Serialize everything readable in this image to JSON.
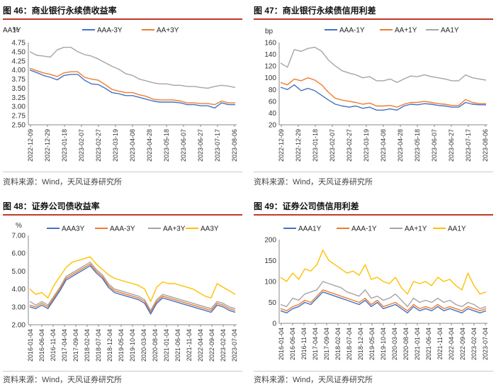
{
  "source_text": "资料来源：Wind，天风证券研究所",
  "colors": {
    "blue": "#4472C4",
    "orange": "#ED7D31",
    "gray": "#A5A5A5",
    "yellow": "#FFC000",
    "title_rule": "#c0392b"
  },
  "chart_data": [
    {
      "id": "c46",
      "title": "图 46：商业银行永续债收益率",
      "type": "line",
      "ylabel": "%",
      "ylim": [
        2.5,
        4.75
      ],
      "yticks": [
        "4.75",
        "4.50",
        "4.25",
        "4.00",
        "3.75",
        "3.50",
        "3.25",
        "3.00",
        "2.75",
        "2.50"
      ],
      "x_tick_labels": [
        "2022-12-09",
        "2022-12-29",
        "2023-01-18",
        "2023-02-07",
        "2023-02-27",
        "2023-03-19",
        "2023-04-08",
        "2023-04-28",
        "2023-05-18",
        "2023-06-07",
        "2023-06-27",
        "2023-07-17",
        "2023-08-06"
      ],
      "series": [
        {
          "name": "AAA-3Y",
          "color": "#4472C4",
          "values": [
            4.0,
            3.93,
            3.85,
            3.8,
            3.73,
            3.85,
            3.88,
            3.88,
            3.72,
            3.62,
            3.6,
            3.5,
            3.38,
            3.35,
            3.3,
            3.3,
            3.25,
            3.2,
            3.15,
            3.12,
            3.12,
            3.12,
            3.1,
            3.05,
            3.05,
            3.02,
            3.02,
            2.96,
            3.1,
            3.05,
            3.05
          ]
        },
        {
          "name": "AA+3Y",
          "color": "#ED7D31",
          "values": [
            4.05,
            3.98,
            3.92,
            3.88,
            3.82,
            3.92,
            3.95,
            3.95,
            3.8,
            3.75,
            3.72,
            3.6,
            3.47,
            3.42,
            3.38,
            3.38,
            3.32,
            3.28,
            3.2,
            3.18,
            3.18,
            3.18,
            3.15,
            3.1,
            3.1,
            3.08,
            3.08,
            3.05,
            3.15,
            3.1,
            3.1
          ]
        },
        {
          "name": "AA1Y",
          "color": "#A5A5A5",
          "values": [
            4.5,
            4.4,
            4.38,
            4.35,
            4.55,
            4.62,
            4.62,
            4.5,
            4.42,
            4.38,
            4.3,
            4.2,
            4.1,
            4.02,
            3.9,
            3.85,
            3.75,
            3.7,
            3.65,
            3.62,
            3.62,
            3.58,
            3.58,
            3.55,
            3.55,
            3.52,
            3.5,
            3.55,
            3.58,
            3.56,
            3.52
          ]
        }
      ]
    },
    {
      "id": "c47",
      "title": "图 47：商业银行永续债信用利差",
      "type": "line",
      "ylabel": "bp",
      "ylim": [
        20,
        160
      ],
      "yticks": [
        "160",
        "140",
        "120",
        "100",
        "80",
        "60",
        "40",
        "20"
      ],
      "x_tick_labels": [
        "2022-12-09",
        "2022-12-29",
        "2023-01-18",
        "2023-02-07",
        "2023-02-27",
        "2023-03-19",
        "2023-04-08",
        "2023-04-28",
        "2023-05-18",
        "2023-06-07",
        "2023-06-27",
        "2023-07-17",
        "2023-08-06"
      ],
      "series": [
        {
          "name": "AAA-1Y",
          "color": "#4472C4",
          "values": [
            84,
            80,
            88,
            78,
            82,
            78,
            70,
            62,
            55,
            52,
            50,
            52,
            48,
            50,
            45,
            45,
            47,
            45,
            52,
            55,
            54,
            56,
            55,
            53,
            52,
            50,
            50,
            58,
            55,
            54,
            54
          ]
        },
        {
          "name": "AA+1Y",
          "color": "#ED7D31",
          "values": [
            92,
            88,
            98,
            95,
            100,
            96,
            88,
            75,
            65,
            62,
            60,
            58,
            55,
            57,
            52,
            52,
            53,
            50,
            55,
            58,
            58,
            60,
            58,
            56,
            55,
            53,
            53,
            63,
            58,
            56,
            56
          ]
        },
        {
          "name": "AA1Y",
          "color": "#A5A5A5",
          "values": [
            125,
            118,
            148,
            145,
            150,
            152,
            145,
            130,
            120,
            112,
            108,
            105,
            100,
            102,
            95,
            95,
            98,
            92,
            98,
            103,
            102,
            105,
            102,
            100,
            98,
            95,
            95,
            105,
            100,
            98,
            96
          ]
        }
      ]
    },
    {
      "id": "c48",
      "title": "图 48：证券公司债收益率",
      "type": "line",
      "ylabel": "%",
      "ylim": [
        2.0,
        7.0
      ],
      "yticks": [
        "7.00",
        "6.00",
        "5.00",
        "4.00",
        "3.00",
        "2.00"
      ],
      "x_tick_labels": [
        "2016-01-04",
        "2016-06-04",
        "2016-11-04",
        "2017-04-04",
        "2017-09-04",
        "2018-02-04",
        "2018-07-04",
        "2018-12-04",
        "2019-05-04",
        "2019-10-04",
        "2020-03-04",
        "2020-08-04",
        "2021-01-04",
        "2021-06-04",
        "2021-11-04",
        "2022-04-04",
        "2022-09-04",
        "2023-02-04",
        "2023-07-04"
      ],
      "series": [
        {
          "name": "AAA3Y",
          "color": "#4472C4",
          "values": [
            3.0,
            2.9,
            3.1,
            2.9,
            3.4,
            3.9,
            4.5,
            4.7,
            4.9,
            5.1,
            5.3,
            4.9,
            4.6,
            4.1,
            3.8,
            3.7,
            3.6,
            3.5,
            3.4,
            3.2,
            2.6,
            3.2,
            3.5,
            3.4,
            3.3,
            3.2,
            3.1,
            3.0,
            2.9,
            2.8,
            2.7,
            3.1,
            3.0,
            2.8,
            2.7
          ]
        },
        {
          "name": "AAA-3Y",
          "color": "#ED7D31",
          "values": [
            3.1,
            3.0,
            3.2,
            3.0,
            3.5,
            4.0,
            4.6,
            4.8,
            5.0,
            5.2,
            5.4,
            5.0,
            4.7,
            4.2,
            3.9,
            3.8,
            3.7,
            3.6,
            3.5,
            3.3,
            2.7,
            3.3,
            3.6,
            3.5,
            3.4,
            3.3,
            3.2,
            3.1,
            3.0,
            2.9,
            2.8,
            3.2,
            3.1,
            2.9,
            2.8
          ]
        },
        {
          "name": "AA+3Y",
          "color": "#A5A5A5",
          "values": [
            3.3,
            3.1,
            3.3,
            3.1,
            3.6,
            4.1,
            4.7,
            4.9,
            5.1,
            5.3,
            5.5,
            5.1,
            4.8,
            4.3,
            4.0,
            3.9,
            3.8,
            3.7,
            3.6,
            3.4,
            2.8,
            3.4,
            3.7,
            3.6,
            3.5,
            3.4,
            3.3,
            3.2,
            3.1,
            3.0,
            2.9,
            3.3,
            3.2,
            3.0,
            2.9
          ]
        },
        {
          "name": "AA3Y",
          "color": "#FFC000",
          "values": [
            4.0,
            3.7,
            3.8,
            3.5,
            4.2,
            4.7,
            5.2,
            5.5,
            5.6,
            5.7,
            5.8,
            5.4,
            5.1,
            4.8,
            4.6,
            4.5,
            4.4,
            4.3,
            4.2,
            4.0,
            3.3,
            4.1,
            4.4,
            4.3,
            4.3,
            4.2,
            4.1,
            4.0,
            3.8,
            3.6,
            3.5,
            4.3,
            4.1,
            3.9,
            3.7
          ]
        }
      ]
    },
    {
      "id": "c49",
      "title": "图 49：证券公司债信用利差",
      "type": "line",
      "ylabel": "",
      "ylim": [
        0,
        200
      ],
      "yticks": [
        "200",
        "150",
        "100",
        "50",
        "0"
      ],
      "x_tick_labels": [
        "2016-01-04",
        "2016-06-04",
        "2016-11-04",
        "2017-04-04",
        "2017-09-04",
        "2018-02-04",
        "2018-07-04",
        "2018-12-04",
        "2019-05-04",
        "2019-10-04",
        "2020-03-04",
        "2020-08-04",
        "2021-01-04",
        "2021-06-04",
        "2021-11-04",
        "2022-04-04",
        "2022-09-04",
        "2023-02-04",
        "2023-07-04"
      ],
      "series": [
        {
          "name": "AAA1Y",
          "color": "#4472C4",
          "values": [
            30,
            25,
            35,
            40,
            50,
            45,
            60,
            75,
            70,
            65,
            60,
            55,
            50,
            45,
            55,
            40,
            50,
            35,
            40,
            45,
            35,
            25,
            40,
            30,
            35,
            30,
            40,
            30,
            35,
            30,
            25,
            35,
            30,
            25,
            30
          ]
        },
        {
          "name": "AAA-1Y",
          "color": "#ED7D31",
          "values": [
            35,
            30,
            40,
            45,
            55,
            50,
            65,
            80,
            75,
            70,
            65,
            60,
            55,
            50,
            60,
            45,
            55,
            40,
            45,
            50,
            40,
            30,
            45,
            35,
            40,
            35,
            45,
            35,
            40,
            35,
            30,
            40,
            35,
            30,
            35
          ]
        },
        {
          "name": "AA+1Y",
          "color": "#A5A5A5",
          "values": [
            45,
            40,
            60,
            55,
            70,
            75,
            80,
            100,
            95,
            90,
            85,
            75,
            70,
            65,
            80,
            60,
            65,
            55,
            60,
            70,
            55,
            40,
            60,
            50,
            55,
            50,
            60,
            50,
            55,
            45,
            40,
            50,
            45,
            35,
            40
          ]
        },
        {
          "name": "AA1Y",
          "color": "#FFC000",
          "values": [
            110,
            100,
            120,
            105,
            130,
            125,
            140,
            175,
            150,
            140,
            130,
            120,
            125,
            115,
            140,
            105,
            110,
            100,
            95,
            110,
            85,
            70,
            100,
            95,
            100,
            90,
            110,
            100,
            105,
            90,
            80,
            120,
            90,
            70,
            75
          ]
        }
      ]
    }
  ]
}
